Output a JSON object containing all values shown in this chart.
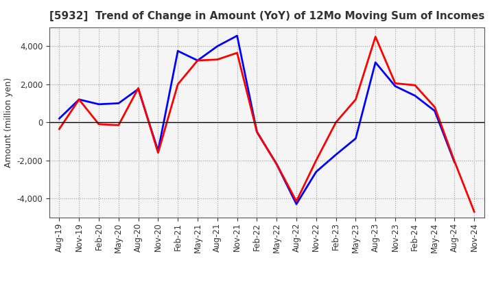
{
  "title": "[5932]  Trend of Change in Amount (YoY) of 12Mo Moving Sum of Incomes",
  "ylabel": "Amount (million yen)",
  "x_labels": [
    "Aug-19",
    "Nov-19",
    "Feb-20",
    "May-20",
    "Aug-20",
    "Nov-20",
    "Feb-21",
    "May-21",
    "Aug-21",
    "Nov-21",
    "Feb-22",
    "May-22",
    "Aug-22",
    "Nov-22",
    "Feb-23",
    "May-23",
    "Aug-23",
    "Nov-23",
    "Feb-24",
    "May-24",
    "Aug-24",
    "Nov-24"
  ],
  "ordinary_income": [
    200,
    1200,
    950,
    1000,
    1750,
    -1500,
    3750,
    3250,
    4000,
    4550,
    -500,
    -2200,
    -4300,
    -2600,
    -1700,
    -850,
    3150,
    1900,
    1400,
    600,
    -2100,
    null
  ],
  "net_income": [
    -350,
    1200,
    -100,
    -150,
    1800,
    -1600,
    2000,
    3250,
    3300,
    3650,
    -500,
    -2200,
    -4150,
    -2000,
    0,
    1200,
    4500,
    2050,
    1950,
    800,
    -2050,
    -4700
  ],
  "ylim": [
    -5000,
    5000
  ],
  "yticks": [
    -4000,
    -2000,
    0,
    2000,
    4000
  ],
  "ordinary_color": "#0000FF",
  "net_color": "#FF0000",
  "bg_color": "#FFFFFF",
  "plot_bg_color": "#F5F5F5",
  "grid_color": "#999999",
  "title_fontsize": 11,
  "ylabel_fontsize": 9,
  "tick_fontsize": 8.5,
  "linewidth": 2.0
}
